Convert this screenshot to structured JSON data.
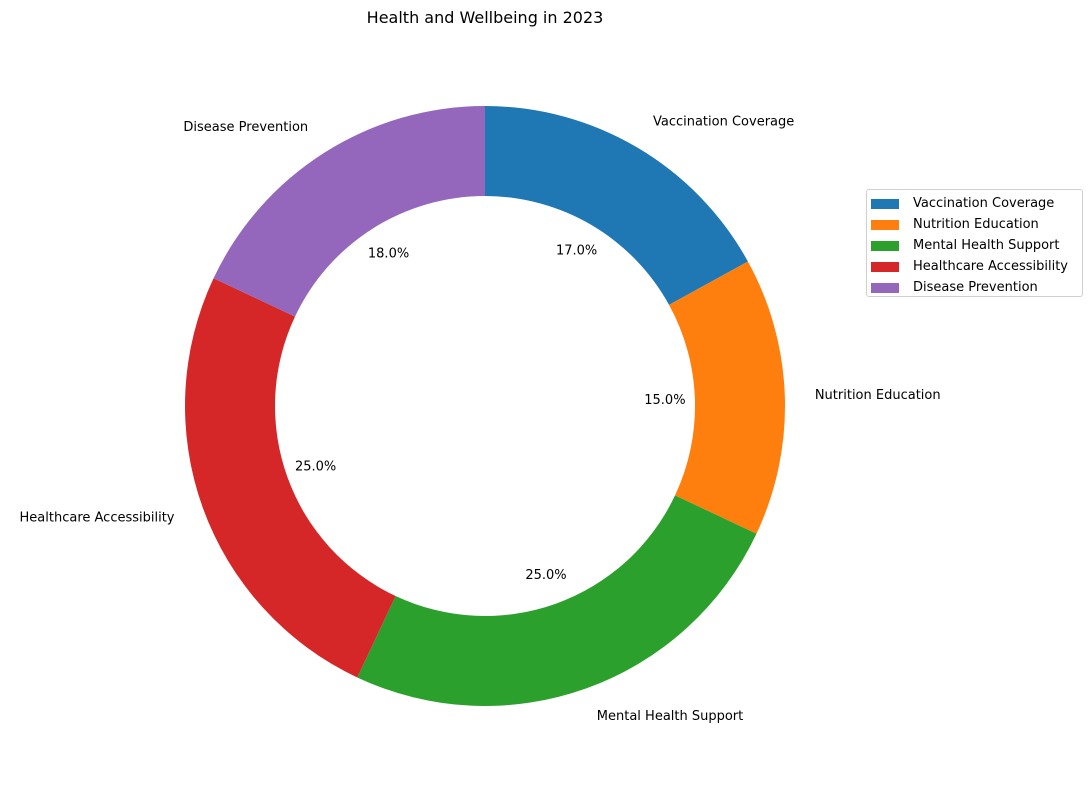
{
  "chart_data": {
    "type": "pie",
    "title": "Health and Wellbeing in 2023",
    "donut": true,
    "start": "top",
    "direction": "clockwise",
    "legend_position": "right",
    "categories": [
      "Vaccination Coverage",
      "Nutrition Education",
      "Mental Health Support",
      "Healthcare Accessibility",
      "Disease Prevention"
    ],
    "values": [
      17.0,
      15.0,
      25.0,
      25.0,
      18.0
    ],
    "percent_labels": [
      "17.0%",
      "15.0%",
      "25.0%",
      "25.0%",
      "18.0%"
    ],
    "colors": [
      "#1f77b4",
      "#ff7f0e",
      "#2ca02c",
      "#d62728",
      "#9467bd"
    ]
  }
}
